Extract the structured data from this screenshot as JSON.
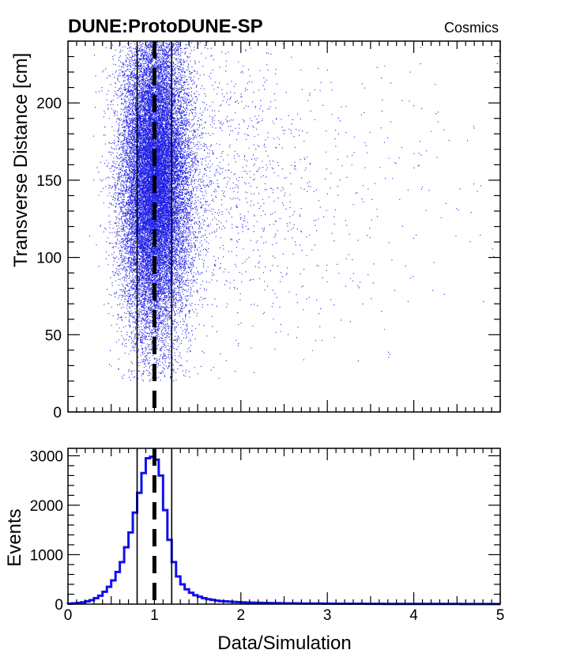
{
  "header": {
    "title": "DUNE:ProtoDUNE-SP",
    "tag": "Cosmics"
  },
  "colors": {
    "points": "#1f1fe6",
    "histogram": "#1010ee",
    "lines": "#000000"
  },
  "chart_data": [
    {
      "type": "scatter",
      "ylabel": "Transverse Distance [cm]",
      "xlabel": "",
      "xlim": [
        0,
        5
      ],
      "ylim": [
        0,
        240
      ],
      "yticks": [
        "0",
        "50",
        "100",
        "150",
        "200"
      ],
      "ytick_values": [
        0,
        50,
        100,
        150,
        200
      ],
      "xticks_labeled": false,
      "reference_line": 1.0,
      "band_lines": [
        0.8,
        1.2
      ],
      "point_count": 26000,
      "distribution": {
        "ratio_peak": 1.0,
        "distance_range": [
          20,
          240
        ],
        "distance_peak": 150,
        "tail_extends_to": 5
      }
    },
    {
      "type": "histogram",
      "xlabel": "Data/Simulation",
      "ylabel": "Events",
      "xlim": [
        0,
        5
      ],
      "ylim": [
        0,
        3150
      ],
      "xticks": [
        "0",
        "1",
        "2",
        "3",
        "4",
        "5"
      ],
      "xtick_values": [
        0,
        1,
        2,
        3,
        4,
        5
      ],
      "yticks": [
        "0",
        "1000",
        "2000",
        "3000"
      ],
      "ytick_values": [
        0,
        1000,
        2000,
        3000
      ],
      "reference_line": 1.0,
      "band_lines": [
        0.8,
        1.2
      ],
      "bin_width": 0.05,
      "values": [
        10,
        15,
        25,
        35,
        55,
        80,
        120,
        170,
        250,
        350,
        480,
        650,
        850,
        1150,
        1450,
        1850,
        2250,
        2650,
        2950,
        2980,
        2920,
        2600,
        1900,
        1300,
        850,
        560,
        400,
        300,
        230,
        180,
        150,
        120,
        100,
        85,
        70,
        60,
        55,
        50,
        45,
        40,
        36,
        33,
        30,
        28,
        26,
        24,
        22,
        20,
        19,
        18,
        17,
        16,
        15,
        14,
        13,
        12,
        12,
        11,
        11,
        10,
        10,
        9,
        9,
        8,
        8,
        8,
        7,
        7,
        7,
        6,
        6,
        6,
        6,
        5,
        5,
        5,
        5,
        5,
        4,
        4,
        4,
        4,
        4,
        4,
        3,
        3,
        3,
        3,
        3,
        3,
        3,
        2,
        2,
        2,
        2,
        2,
        2,
        2,
        2,
        2
      ]
    }
  ]
}
